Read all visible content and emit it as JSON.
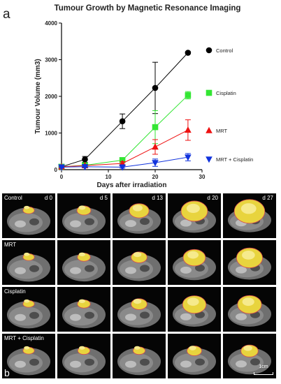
{
  "panel_a_letter": "a",
  "chart_data": {
    "type": "line",
    "title": "Tumour Growth by Magnetic Resonance Imaging",
    "xlabel": "Days after irradiation",
    "ylabel": "Tumour Volume  (mm3)",
    "xlim": [
      0,
      30
    ],
    "ylim": [
      0,
      4000
    ],
    "xticks": [
      0,
      10,
      20,
      30
    ],
    "yticks": [
      0,
      1000,
      2000,
      3000,
      4000
    ],
    "grid": false,
    "legend": "right, inline with series ends",
    "series": [
      {
        "name": "Control",
        "color": "#000000",
        "marker": "circle",
        "x": [
          0,
          5,
          13,
          20,
          27
        ],
        "y": [
          80,
          280,
          1320,
          2230,
          3190
        ],
        "err": [
          20,
          80,
          200,
          700,
          30
        ]
      },
      {
        "name": "Cisplatin",
        "color": "#33e633",
        "marker": "square",
        "x": [
          0,
          5,
          13,
          20,
          27
        ],
        "y": [
          80,
          120,
          260,
          1160,
          2030
        ],
        "err": [
          20,
          30,
          60,
          450,
          100
        ]
      },
      {
        "name": "MRT",
        "color": "#ee1111",
        "marker": "triangle-up",
        "x": [
          0,
          5,
          13,
          20,
          27
        ],
        "y": [
          80,
          110,
          170,
          620,
          1080
        ],
        "err": [
          20,
          30,
          50,
          200,
          280
        ]
      },
      {
        "name": "MRT + Cisplatin",
        "color": "#1133dd",
        "marker": "triangle-down",
        "x": [
          0,
          5,
          13,
          20,
          27
        ],
        "y": [
          70,
          80,
          70,
          190,
          340
        ],
        "err": [
          20,
          20,
          30,
          100,
          100
        ]
      }
    ]
  },
  "panel_b": {
    "letter": "b",
    "scale_label": "1cm",
    "days": [
      "d 0",
      "d 5",
      "d 13",
      "d 20",
      "d 27"
    ],
    "rows": [
      {
        "label": "Control",
        "tumor": [
          0.12,
          0.22,
          0.45,
          0.72,
          0.88
        ]
      },
      {
        "label": "MRT",
        "tumor": [
          0.12,
          0.18,
          0.3,
          0.55,
          0.7
        ]
      },
      {
        "label": "Cisplatin",
        "tumor": [
          0.12,
          0.18,
          0.3,
          0.6,
          0.62
        ]
      },
      {
        "label": "MRT + Cisplatin",
        "tumor": [
          0.12,
          0.15,
          0.15,
          0.25,
          0.35
        ]
      }
    ]
  }
}
